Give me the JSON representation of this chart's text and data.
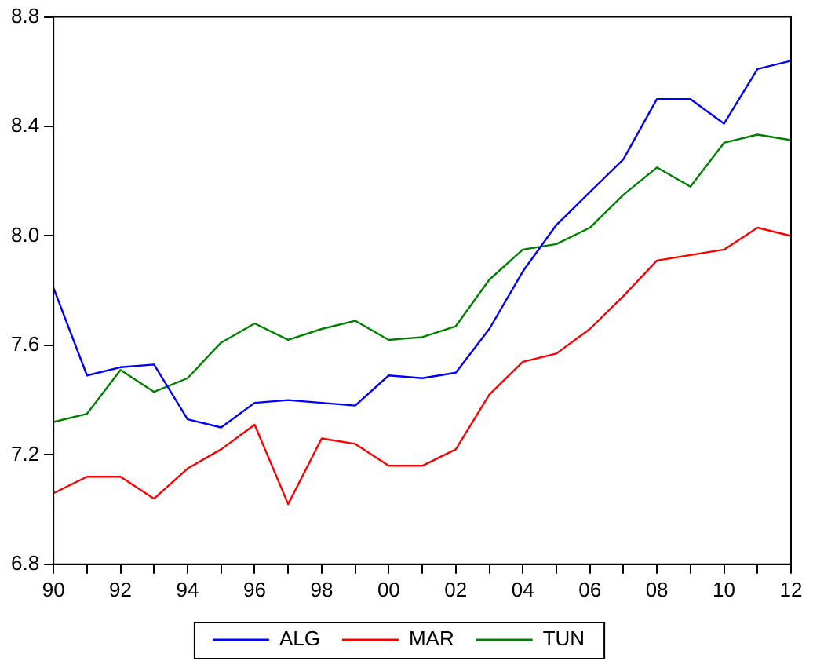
{
  "chart_data": {
    "type": "line",
    "x": [
      1990,
      1991,
      1992,
      1993,
      1994,
      1995,
      1996,
      1997,
      1998,
      1999,
      2000,
      2001,
      2002,
      2003,
      2004,
      2005,
      2006,
      2007,
      2008,
      2009,
      2010,
      2011,
      2012
    ],
    "series": [
      {
        "name": "ALG",
        "color": "#0000ff",
        "values": [
          7.81,
          7.49,
          7.52,
          7.53,
          7.33,
          7.3,
          7.39,
          7.4,
          7.39,
          7.38,
          7.49,
          7.48,
          7.5,
          7.66,
          7.87,
          8.04,
          8.16,
          8.28,
          8.5,
          8.5,
          8.41,
          8.61,
          8.64
        ]
      },
      {
        "name": "MAR",
        "color": "#ff0000",
        "values": [
          7.06,
          7.12,
          7.12,
          7.04,
          7.15,
          7.22,
          7.31,
          7.02,
          7.26,
          7.24,
          7.16,
          7.16,
          7.22,
          7.42,
          7.54,
          7.57,
          7.66,
          7.78,
          7.91,
          7.93,
          7.95,
          8.03,
          8.0
        ]
      },
      {
        "name": "TUN",
        "color": "#008000",
        "values": [
          7.32,
          7.35,
          7.51,
          7.43,
          7.48,
          7.61,
          7.68,
          7.62,
          7.66,
          7.69,
          7.62,
          7.63,
          7.67,
          7.84,
          7.95,
          7.97,
          8.03,
          8.15,
          8.25,
          8.18,
          8.34,
          8.37,
          8.35
        ]
      }
    ],
    "xlim": [
      1990,
      2012
    ],
    "xticks": [
      {
        "value": 1990,
        "label": "90"
      },
      {
        "value": 1991,
        "label": null
      },
      {
        "value": 1992,
        "label": "92"
      },
      {
        "value": 1993,
        "label": null
      },
      {
        "value": 1994,
        "label": "94"
      },
      {
        "value": 1995,
        "label": null
      },
      {
        "value": 1996,
        "label": "96"
      },
      {
        "value": 1997,
        "label": null
      },
      {
        "value": 1998,
        "label": "98"
      },
      {
        "value": 1999,
        "label": null
      },
      {
        "value": 2000,
        "label": "00"
      },
      {
        "value": 2001,
        "label": null
      },
      {
        "value": 2002,
        "label": "02"
      },
      {
        "value": 2003,
        "label": null
      },
      {
        "value": 2004,
        "label": "04"
      },
      {
        "value": 2005,
        "label": null
      },
      {
        "value": 2006,
        "label": "06"
      },
      {
        "value": 2007,
        "label": null
      },
      {
        "value": 2008,
        "label": "08"
      },
      {
        "value": 2009,
        "label": null
      },
      {
        "value": 2010,
        "label": "10"
      },
      {
        "value": 2011,
        "label": null
      },
      {
        "value": 2012,
        "label": "12"
      }
    ],
    "ylim": [
      6.8,
      8.8
    ],
    "yticks": [
      {
        "value": 6.8,
        "label": "6.8"
      },
      {
        "value": 7.2,
        "label": "7.2"
      },
      {
        "value": 7.6,
        "label": "7.6"
      },
      {
        "value": 8.0,
        "label": "8.0"
      },
      {
        "value": 8.4,
        "label": "8.4"
      },
      {
        "value": 8.8,
        "label": "8.8"
      }
    ],
    "grid": false,
    "legend": "bottom",
    "marker": "none",
    "line_style": "solid"
  }
}
